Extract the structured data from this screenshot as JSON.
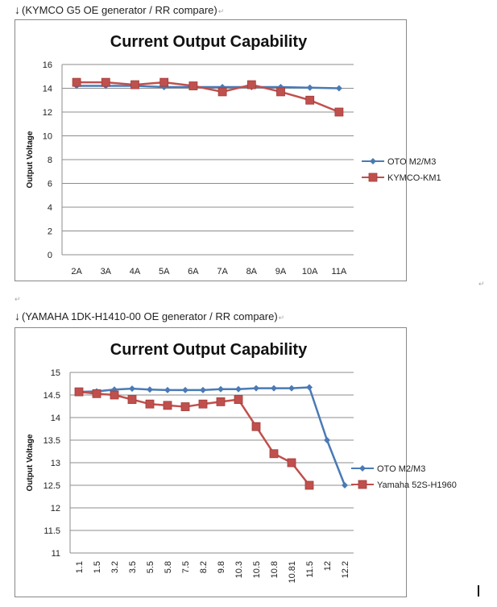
{
  "document": {
    "paragraph_mark": "↵",
    "captions": [
      {
        "arrow": "↓",
        "text": "(KYMCO G5 OE generator / RR compare)"
      },
      {
        "arrow": "↓",
        "text": "(YAMAHA 1DK-H1410-00 OE generator / RR compare)"
      }
    ]
  },
  "chart_data": [
    {
      "type": "line",
      "title": "Current Output Capability",
      "xlabel": "",
      "ylabel": "Output Voltage",
      "categories": [
        "2A",
        "3A",
        "4A",
        "5A",
        "6A",
        "7A",
        "8A",
        "9A",
        "10A",
        "11A"
      ],
      "ylim": [
        0,
        16
      ],
      "yticks": [
        "0",
        "2",
        "4",
        "6",
        "8",
        "10",
        "12",
        "14",
        "16"
      ],
      "grid": true,
      "legend": "right",
      "series": [
        {
          "name": "OTO M2/M3",
          "color": "#4a7ab5",
          "marker": "diamond",
          "values": [
            14.2,
            14.2,
            14.2,
            14.1,
            14.1,
            14.1,
            14.1,
            14.1,
            14.05,
            14.0
          ]
        },
        {
          "name": "KYMCO-KM1",
          "color": "#c0504d",
          "marker": "square",
          "values": [
            14.5,
            14.5,
            14.3,
            14.5,
            14.2,
            13.7,
            14.3,
            13.7,
            13.0,
            12.0
          ]
        }
      ]
    },
    {
      "type": "line",
      "title": "Current Output Capability",
      "xlabel": "",
      "ylabel": "Output Voltage",
      "categories": [
        "1.1",
        "1.5",
        "3.2",
        "3.5",
        "5.5",
        "5.8",
        "7.5",
        "8.2",
        "9.8",
        "10.3",
        "10.5",
        "10.8",
        "10.81",
        "11.5",
        "12",
        "12.2"
      ],
      "ylim": [
        11,
        15
      ],
      "yticks": [
        "11",
        "11.5",
        "12",
        "12.5",
        "13",
        "13.5",
        "14",
        "14.5",
        "15"
      ],
      "grid": true,
      "legend": "right",
      "series": [
        {
          "name": "OTO M2/M3",
          "color": "#4a7ab5",
          "marker": "diamond",
          "values": [
            14.57,
            14.58,
            14.62,
            14.64,
            14.62,
            14.61,
            14.61,
            14.61,
            14.63,
            14.63,
            14.65,
            14.65,
            14.65,
            14.67,
            13.5,
            12.5
          ]
        },
        {
          "name": "Yamaha 52S-H1960",
          "color": "#c0504d",
          "marker": "square",
          "values": [
            14.57,
            14.53,
            14.5,
            14.4,
            14.3,
            14.27,
            14.24,
            14.3,
            14.35,
            14.4,
            13.8,
            13.2,
            13.0,
            12.5,
            null,
            null
          ]
        }
      ]
    }
  ]
}
